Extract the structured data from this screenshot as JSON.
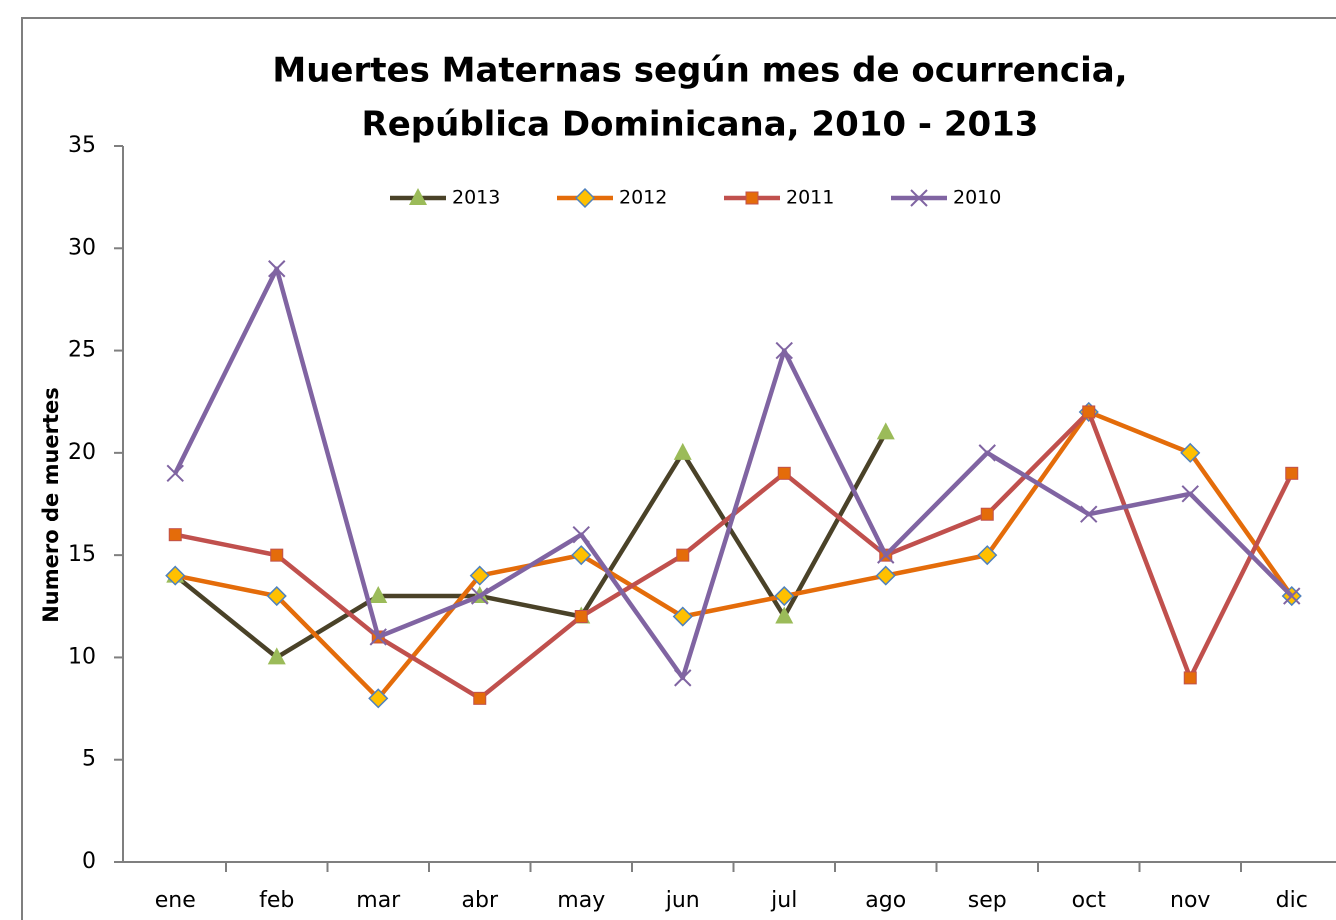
{
  "chart_data": {
    "type": "line",
    "title": [
      "Muertes Maternas según mes de ocurrencia,",
      "República Dominicana, 2010 - 2013"
    ],
    "y_label": "Numero de muertes",
    "categories": [
      "ene",
      "feb",
      "mar",
      "abr",
      "may",
      "jun",
      "jul",
      "ago",
      "sep",
      "oct",
      "nov",
      "dic"
    ],
    "series": [
      {
        "name": "2013",
        "color": "#4a4228",
        "marker": "triangle",
        "marker_color": "#9bbb59",
        "values": [
          14,
          10,
          13,
          13,
          12,
          20,
          12,
          21,
          null,
          null,
          null,
          null
        ]
      },
      {
        "name": "2012",
        "color": "#e46c0a",
        "marker": "diamond",
        "marker_color": "#ffc000",
        "values": [
          14,
          13,
          8,
          14,
          15,
          12,
          13,
          14,
          15,
          22,
          20,
          13
        ]
      },
      {
        "name": "2011",
        "color": "#c0504d",
        "marker": "square",
        "marker_color": "#e46c0a",
        "values": [
          16,
          15,
          11,
          8,
          12,
          15,
          19,
          15,
          17,
          22,
          9,
          19
        ]
      },
      {
        "name": "2010",
        "color": "#8064a2",
        "marker": "x",
        "marker_color": "#8064a2",
        "values": [
          19,
          29,
          11,
          13,
          16,
          9,
          25,
          15,
          20,
          17,
          18,
          13
        ]
      }
    ],
    "ylim": [
      0,
      35
    ],
    "yticks": [
      0,
      5,
      10,
      15,
      20,
      25,
      30,
      35
    ],
    "grid": false,
    "legend": "top"
  }
}
